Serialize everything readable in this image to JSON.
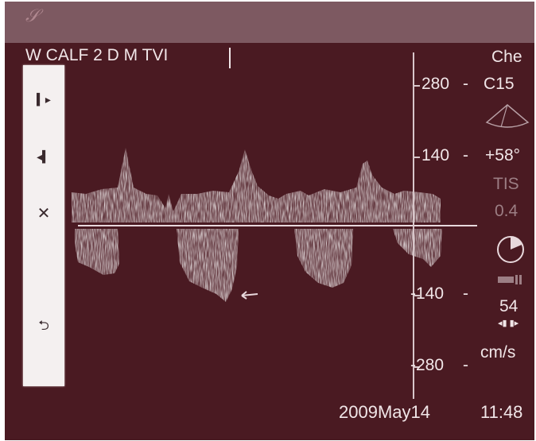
{
  "header": {
    "probe_label": "W CALF 2 D M TVI"
  },
  "side_toolbar": {
    "buttons": [
      {
        "icon": "step-forward-icon",
        "glyph": "▍▸"
      },
      {
        "icon": "step-back-icon",
        "glyph": "◂▍"
      },
      {
        "icon": "close-icon",
        "glyph": "✕"
      },
      {
        "icon": "return-icon",
        "glyph": "⮌"
      }
    ]
  },
  "scale": {
    "top_280": "280",
    "top_140": "140",
    "bottom_140": "-140",
    "bottom_280": "-280"
  },
  "right_panel": {
    "mode": "Che",
    "preset": "C15",
    "angle": "+58°",
    "tis_label": "TIS",
    "tis_value": "0.4",
    "gain": "54",
    "unit": "cm/s"
  },
  "footer": {
    "date": "2009May14",
    "time": "11:48"
  },
  "colors": {
    "background": "#4a1a22",
    "topbar": "#7d5961",
    "text": "#f1e6e8",
    "sidebar": "#f4f0f0"
  }
}
